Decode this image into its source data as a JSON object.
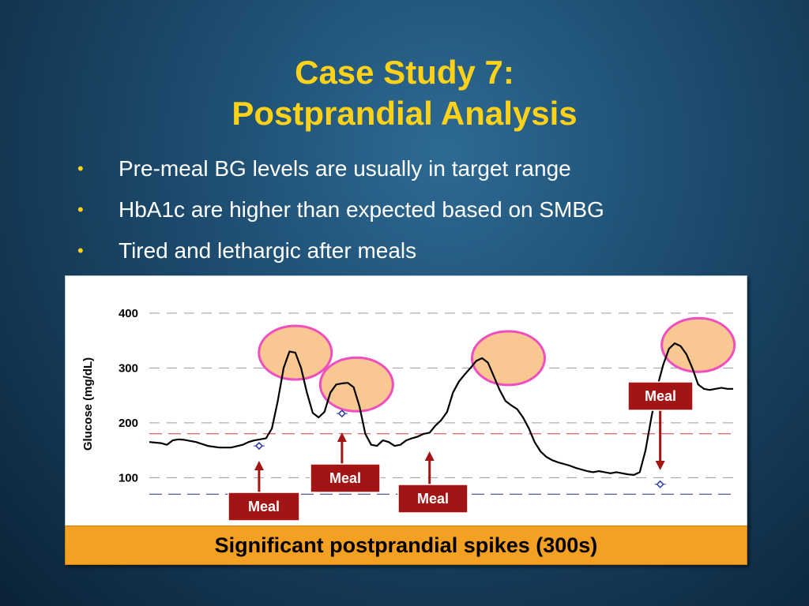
{
  "title_line1": "Case Study 7:",
  "title_line2": "Postprandial Analysis",
  "bullets": [
    "Pre-meal BG levels are usually in target range",
    "HbA1c are higher than expected based on SMBG",
    "Tired and lethargic after meals"
  ],
  "banner": "Significant postprandial spikes (300s)",
  "colors": {
    "title": "#ffd21a",
    "meal_box": "#a31515",
    "highlight_fill": "#f9c792",
    "highlight_stroke": "#ee4fbe",
    "upper_target": "#d43a3a",
    "lower_target": "#27308a",
    "banner": "#f4a023"
  },
  "chart_data": {
    "type": "line",
    "ylabel": "Glucose  (mg/dL)",
    "xlabel": "",
    "title": "",
    "ylim": [
      20,
      420
    ],
    "xlim": [
      0,
      100
    ],
    "grid": "dashed horizontal at y ticks",
    "yticks": [
      100,
      200,
      300,
      400
    ],
    "ytick_labels": [
      "100",
      "200",
      "300",
      "400"
    ],
    "reference_lines": [
      {
        "y": 180,
        "color": "#d43a3a"
      },
      {
        "y": 70,
        "color": "#27308a"
      }
    ],
    "series": [
      {
        "x": [
          0,
          2,
          3,
          4,
          5,
          6,
          8,
          10,
          12,
          14,
          16,
          17,
          18,
          19,
          20,
          21,
          22,
          23,
          24,
          25,
          26,
          27,
          28,
          29,
          30,
          31,
          32,
          33,
          34,
          35,
          36,
          37,
          38,
          39,
          40,
          41,
          42,
          43,
          44,
          45,
          46,
          47,
          48,
          49,
          50,
          51,
          52,
          53,
          54,
          55,
          56,
          57,
          58,
          59,
          60,
          61,
          62,
          63,
          64,
          65,
          66,
          67,
          68,
          69,
          70,
          71,
          72,
          73,
          74,
          75,
          76,
          77,
          78,
          79,
          80,
          81,
          82,
          83,
          84,
          85,
          86,
          87,
          88,
          89,
          90,
          91,
          92,
          93,
          94,
          95,
          96,
          97,
          98,
          99,
          100
        ],
        "y": [
          165,
          163,
          160,
          168,
          170,
          169,
          165,
          158,
          155,
          155,
          160,
          165,
          168,
          170,
          172,
          190,
          240,
          300,
          330,
          328,
          300,
          255,
          218,
          210,
          220,
          255,
          270,
          272,
          273,
          265,
          230,
          180,
          160,
          158,
          168,
          165,
          158,
          160,
          168,
          172,
          175,
          180,
          182,
          195,
          205,
          220,
          255,
          275,
          288,
          300,
          313,
          318,
          310,
          285,
          260,
          240,
          232,
          225,
          210,
          190,
          165,
          148,
          138,
          132,
          128,
          125,
          122,
          118,
          115,
          112,
          110,
          112,
          110,
          108,
          110,
          108,
          106,
          105,
          110,
          150,
          210,
          265,
          305,
          335,
          345,
          340,
          325,
          300,
          270,
          262,
          260,
          262,
          264,
          262,
          262
        ]
      }
    ],
    "markers": [
      {
        "x": 18.8,
        "y": 158
      },
      {
        "x": 33,
        "y": 217
      },
      {
        "x": 87.5,
        "y": 88
      }
    ],
    "highlight_regions": [
      {
        "x": 25,
        "y": 328
      },
      {
        "x": 35.5,
        "y": 270
      },
      {
        "x": 61.5,
        "y": 318
      },
      {
        "x": 94,
        "y": 342
      }
    ],
    "annotations": [
      {
        "text": "Meal",
        "x": 18.8,
        "arrow": "up"
      },
      {
        "text": "Meal",
        "x": 33,
        "arrow": "up"
      },
      {
        "text": "Meal",
        "x": 48,
        "arrow": "up"
      },
      {
        "text": "Meal",
        "x": 87.5,
        "arrow": "down"
      }
    ]
  }
}
